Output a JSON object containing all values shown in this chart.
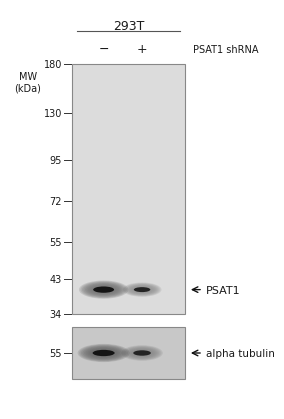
{
  "bg_color": "#f5f5f5",
  "gel_color": "#dcdcdc",
  "dark_gray": "#1a1a1a",
  "title_text": "293T",
  "shrna_label": "PSAT1 shRNA",
  "minus_label": "−",
  "plus_label": "+",
  "mw_label": "MW\n(kDa)",
  "mw_marks": [
    180,
    130,
    95,
    72,
    55,
    43,
    34
  ],
  "psat1_label": "PSAT1",
  "alpha_tub_label": "alpha tubulin",
  "font_size_title": 9,
  "font_size_labels": 8,
  "font_size_mw": 7,
  "font_size_band_label": 8,
  "fig_bg": "#ffffff"
}
